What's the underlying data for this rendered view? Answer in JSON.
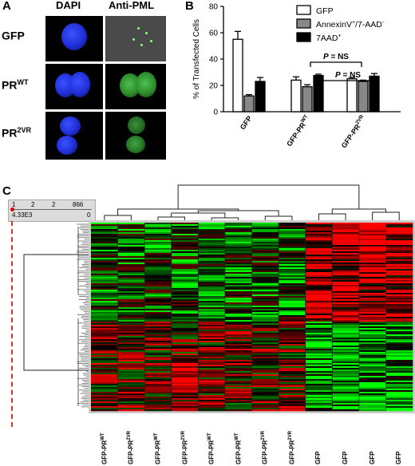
{
  "panel_a": {
    "letter": "A",
    "columns": [
      "DAPI",
      "Anti-PML"
    ],
    "rows": [
      {
        "label": "GFP",
        "sup": ""
      },
      {
        "label": "PR",
        "sup": "WT"
      },
      {
        "label": "PR",
        "sup": "2VR"
      }
    ]
  },
  "panel_b": {
    "letter": "B",
    "annotations": [
      "P = NS",
      "P = NS"
    ]
  },
  "panel_c": {
    "letter": "C",
    "ruler": {
      "top_labels": [
        "1",
        "2",
        "2",
        "866"
      ],
      "bottom_left": "4.33E3",
      "bottom_right": "0"
    },
    "columns": [
      {
        "label": "GFP-PR",
        "sup": "WT"
      },
      {
        "label": "GFP-PR",
        "sup": "2VR"
      },
      {
        "label": "GFP-PR",
        "sup": "WT"
      },
      {
        "label": "GFP-PR",
        "sup": "2VR"
      },
      {
        "label": "GFP-PR",
        "sup": "WT"
      },
      {
        "label": "GFP-PR",
        "sup": "WT"
      },
      {
        "label": "GFP-PR",
        "sup": "2VR"
      },
      {
        "label": "GFP-PR",
        "sup": "2VR"
      },
      {
        "label": "GFP",
        "sup": ""
      },
      {
        "label": "GFP",
        "sup": ""
      },
      {
        "label": "GFP",
        "sup": ""
      },
      {
        "label": "GFP",
        "sup": ""
      }
    ],
    "colors": {
      "high": "#ff0000",
      "low": "#00ff00",
      "mid": "#000000"
    }
  },
  "chart_data": {
    "type": "bar",
    "ylabel": "% of Transfected Cells",
    "ylim": [
      0,
      80
    ],
    "yticks": [
      0,
      20,
      40,
      60,
      80
    ],
    "categories": [
      {
        "label": "GFP",
        "sup": ""
      },
      {
        "label": "GFP-PR",
        "sup": "WT"
      },
      {
        "label": "GFP-PR",
        "sup": "2VR"
      }
    ],
    "legend_position": "top-right",
    "series": [
      {
        "name": "GFP",
        "sup": "",
        "name2": "",
        "sup2": "",
        "color": "#ffffff",
        "values": [
          55,
          24,
          25
        ],
        "errors": [
          6,
          2.5,
          1
        ]
      },
      {
        "name": "AnnexinV",
        "sup": "+",
        "name2": "/7-AAD",
        "sup2": "-",
        "color": "#888888",
        "values": [
          12,
          19,
          23
        ],
        "errors": [
          1,
          1.5,
          1
        ]
      },
      {
        "name": "7AAD",
        "sup": "+",
        "name2": "",
        "sup2": "",
        "color": "#000000",
        "values": [
          23,
          27.5,
          27
        ],
        "errors": [
          3,
          1,
          2
        ]
      }
    ]
  }
}
